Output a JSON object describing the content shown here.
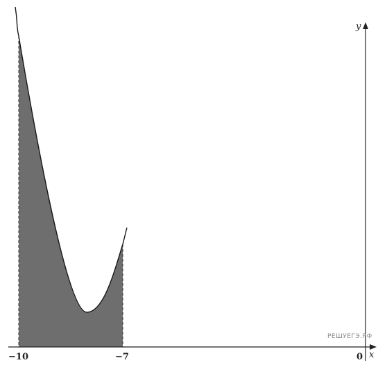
{
  "figure": {
    "x_axis_label": "x",
    "y_axis_label": "y",
    "tick_labels": {
      "left": "−10",
      "right": "−7",
      "origin": "0"
    },
    "watermark": "РЕШУЕГЭ.РФ",
    "shade_color": "#6e6e6e",
    "curve_color": "#1a1a1a"
  }
}
